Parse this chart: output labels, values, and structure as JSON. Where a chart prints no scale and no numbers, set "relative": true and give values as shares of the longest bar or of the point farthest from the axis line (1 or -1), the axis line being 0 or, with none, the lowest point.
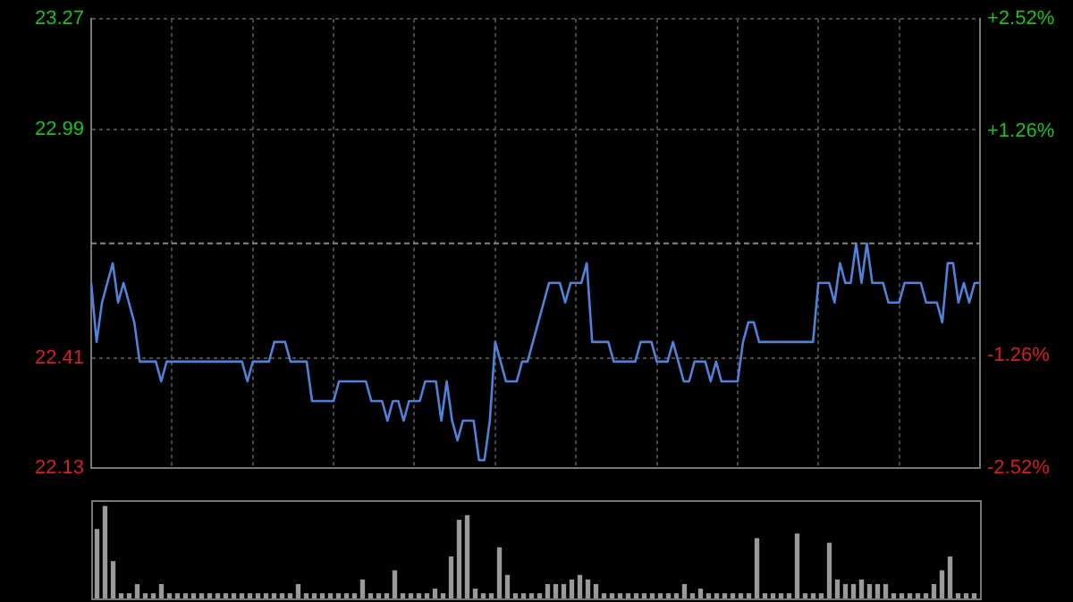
{
  "chart_data": [
    {
      "type": "line",
      "color": "#4f82d8",
      "categories": [
        null,
        null,
        null,
        null,
        null,
        null,
        null,
        null,
        null,
        null,
        null,
        null,
        null,
        null,
        null,
        null,
        null,
        null,
        null,
        null,
        null,
        null,
        null,
        null,
        null,
        null,
        null,
        null,
        null,
        null,
        null,
        null,
        null,
        null,
        null,
        null,
        null,
        null,
        null,
        null,
        null,
        null,
        null,
        null,
        null,
        null,
        null,
        null,
        null,
        null,
        null,
        null,
        null,
        null,
        null,
        null,
        null,
        null,
        null,
        null,
        null,
        null,
        null,
        null,
        null,
        null,
        null,
        null,
        null,
        null,
        null,
        null,
        null,
        null,
        null,
        null,
        null,
        null,
        null,
        null,
        null,
        null,
        null,
        null,
        null,
        null,
        null,
        null,
        null,
        null,
        null,
        null,
        null,
        null,
        null,
        null,
        null,
        null,
        null,
        null,
        null,
        null,
        null,
        null,
        null,
        null,
        null,
        null,
        null,
        null,
        null,
        null,
        null,
        null,
        null,
        null,
        null,
        null,
        null,
        null,
        null,
        null,
        null,
        null,
        null,
        null,
        null,
        null,
        null,
        null,
        null,
        null,
        null,
        null,
        null,
        null,
        null,
        null,
        null,
        null,
        null,
        null,
        null,
        null,
        null,
        null,
        null,
        null,
        null,
        null,
        null,
        null,
        null,
        null,
        null,
        null,
        null,
        null,
        null,
        null,
        null,
        null,
        null,
        null,
        null,
        null
      ],
      "values": [
        22.6,
        22.45,
        22.55,
        22.6,
        22.65,
        22.55,
        22.6,
        22.55,
        22.5,
        22.4,
        22.4,
        22.4,
        22.4,
        22.35,
        22.4,
        22.4,
        22.4,
        22.4,
        22.4,
        22.4,
        22.4,
        22.4,
        22.4,
        22.4,
        22.4,
        22.4,
        22.4,
        22.4,
        22.4,
        22.35,
        22.4,
        22.4,
        22.4,
        22.4,
        22.45,
        22.45,
        22.45,
        22.4,
        22.4,
        22.4,
        22.4,
        22.3,
        22.3,
        22.3,
        22.3,
        22.3,
        22.35,
        22.35,
        22.35,
        22.35,
        22.35,
        22.35,
        22.3,
        22.3,
        22.3,
        22.25,
        22.3,
        22.3,
        22.25,
        22.3,
        22.3,
        22.3,
        22.35,
        22.35,
        22.35,
        22.25,
        22.35,
        22.25,
        22.2,
        22.25,
        22.25,
        22.25,
        22.15,
        22.15,
        22.25,
        22.45,
        22.4,
        22.35,
        22.35,
        22.35,
        22.4,
        22.4,
        22.45,
        22.5,
        22.55,
        22.6,
        22.6,
        22.6,
        22.55,
        22.6,
        22.6,
        22.6,
        22.65,
        22.45,
        22.45,
        22.45,
        22.45,
        22.4,
        22.4,
        22.4,
        22.4,
        22.4,
        22.45,
        22.45,
        22.45,
        22.4,
        22.4,
        22.4,
        22.45,
        22.4,
        22.35,
        22.35,
        22.4,
        22.4,
        22.4,
        22.35,
        22.4,
        22.35,
        22.35,
        22.35,
        22.35,
        22.45,
        22.5,
        22.5,
        22.45,
        22.45,
        22.45,
        22.45,
        22.45,
        22.45,
        22.45,
        22.45,
        22.45,
        22.45,
        22.45,
        22.6,
        22.6,
        22.6,
        22.55,
        22.65,
        22.6,
        22.6,
        22.7,
        22.6,
        22.7,
        22.6,
        22.6,
        22.6,
        22.55,
        22.55,
        22.55,
        22.6,
        22.6,
        22.6,
        22.6,
        22.55,
        22.55,
        22.55,
        22.5,
        22.65,
        22.65,
        22.55,
        22.6,
        22.55,
        22.6,
        22.6
      ],
      "ylim": [
        22.13,
        23.27
      ],
      "yticks": [
        22.13,
        22.41,
        22.99,
        23.27
      ],
      "y2lim": [
        -2.52,
        2.52
      ],
      "y2ticks": [
        {
          "value": -2.52,
          "label": "-2.52%"
        },
        {
          "value": -1.26,
          "label": "-1.26%"
        },
        {
          "value": 1.26,
          "label": "+1.26%"
        },
        {
          "value": 2.52,
          "label": "+2.52%"
        }
      ],
      "grid": true,
      "ref_lines": [
        {
          "axis": "y",
          "value": 22.7
        }
      ]
    },
    {
      "type": "bar",
      "relative": true,
      "color": "#9a9a9a",
      "categories": [
        null,
        null,
        null,
        null,
        null,
        null,
        null,
        null,
        null,
        null,
        null,
        null,
        null,
        null,
        null,
        null,
        null,
        null,
        null,
        null,
        null,
        null,
        null,
        null,
        null,
        null,
        null,
        null,
        null,
        null,
        null,
        null,
        null,
        null,
        null,
        null,
        null,
        null,
        null,
        null,
        null,
        null,
        null,
        null,
        null,
        null,
        null,
        null,
        null,
        null,
        null,
        null,
        null,
        null,
        null,
        null,
        null,
        null,
        null,
        null,
        null,
        null,
        null,
        null,
        null,
        null,
        null,
        null,
        null,
        null,
        null,
        null,
        null,
        null,
        null,
        null,
        null,
        null,
        null,
        null,
        null,
        null,
        null,
        null,
        null,
        null,
        null,
        null,
        null,
        null,
        null,
        null,
        null,
        null,
        null,
        null,
        null,
        null,
        null,
        null,
        null,
        null,
        null,
        null,
        null,
        null,
        null,
        null,
        null,
        null
      ],
      "values": [
        0.75,
        1,
        0.4,
        0.05,
        0.05,
        0.15,
        0.05,
        0.05,
        0.15,
        0.05,
        0.05,
        0.05,
        0.05,
        0.05,
        0.05,
        0.05,
        0.05,
        0.05,
        0.05,
        0.05,
        0.05,
        0.05,
        0.05,
        0.05,
        0.05,
        0.15,
        0.05,
        0.05,
        0.05,
        0.05,
        0.05,
        0.05,
        0.05,
        0.2,
        0.05,
        0.05,
        0.05,
        0.3,
        0.05,
        0.05,
        0.05,
        0.05,
        0.1,
        0.05,
        0.45,
        0.85,
        0.9,
        0.1,
        0.05,
        0.05,
        0.55,
        0.25,
        0.05,
        0.05,
        0.05,
        0.05,
        0.15,
        0.15,
        0.15,
        0.2,
        0.25,
        0.2,
        0.15,
        0.05,
        0.05,
        0.05,
        0.05,
        0.05,
        0.05,
        0.05,
        0.05,
        0.05,
        0.05,
        0.15,
        0.05,
        0.1,
        0.05,
        0.05,
        0.05,
        0.05,
        0.05,
        0.05,
        0.65,
        0.05,
        0.05,
        0.05,
        0.05,
        0.7,
        0.05,
        0.05,
        0.05,
        0.6,
        0.2,
        0.15,
        0.15,
        0.2,
        0.15,
        0.15,
        0.15,
        0.05,
        0.05,
        0.05,
        0.05,
        0.05,
        0.15,
        0.3,
        0.45,
        0.05,
        0.05,
        0.05
      ]
    }
  ]
}
